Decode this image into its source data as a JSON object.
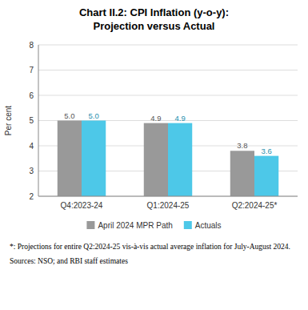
{
  "chart_data": {
    "type": "bar",
    "title": "Chart II.2: CPI Inflation (y-o-y):",
    "subtitle": "Projection versus Actual",
    "categories": [
      "Q4:2023-24",
      "Q1:2024-25",
      "Q2:2024-25*"
    ],
    "series": [
      {
        "name": "April 2024 MPR Path",
        "color": "#999999",
        "values": [
          5.0,
          4.9,
          3.8
        ],
        "value_labels": [
          "5.0",
          "4.9",
          "3.8"
        ]
      },
      {
        "name": "Actuals",
        "color": "#4DC8E8",
        "values": [
          5.0,
          4.9,
          3.6
        ],
        "value_labels": [
          "5.0",
          "4.9",
          "3.6"
        ]
      }
    ],
    "ylim": [
      2,
      8
    ],
    "yticks": [
      2,
      3,
      4,
      5,
      6,
      7,
      8
    ],
    "ylabel": "Per cent",
    "grid": true,
    "legend": "bottom",
    "data_labels": true,
    "annotations": [
      "*: Projections for entire Q2:2024-25 vis-à-vis actual average inflation for July-August 2024.",
      "Sources: NSO; and RBI staff estimates"
    ]
  }
}
